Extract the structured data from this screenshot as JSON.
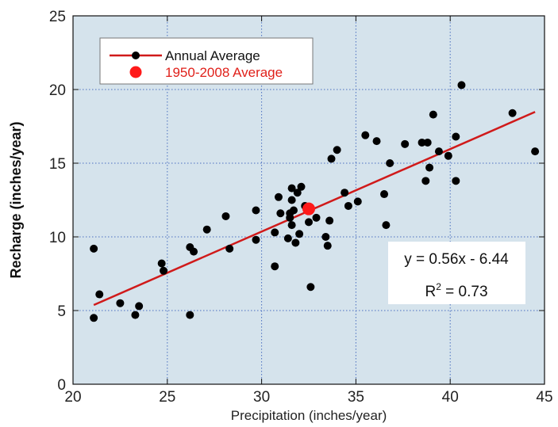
{
  "chart_data": {
    "type": "scatter",
    "xlabel": "Precipitation (inches/year)",
    "ylabel": "Recharge (inches/year)",
    "xlim": [
      20,
      45
    ],
    "ylim": [
      0,
      25
    ],
    "x_ticks": [
      "20",
      "25",
      "30",
      "35",
      "40",
      "45"
    ],
    "y_ticks": [
      "0",
      "5",
      "10",
      "15",
      "20",
      "25"
    ],
    "grid": true,
    "background_color": "#d5e3ec",
    "point_color": "#000000",
    "line_color": "#d01a1a",
    "highlight_color": "#ff1a1a",
    "legend_position": "top-left",
    "legend": [
      {
        "label": "Annual Average",
        "color": "#000000"
      },
      {
        "label": "1950-2008 Average",
        "color": "#ff1a1a"
      }
    ],
    "series": [
      {
        "name": "Annual Average",
        "points": [
          [
            21.1,
            9.2
          ],
          [
            21.1,
            4.5
          ],
          [
            21.4,
            6.1
          ],
          [
            22.5,
            5.5
          ],
          [
            23.3,
            4.7
          ],
          [
            23.5,
            5.3
          ],
          [
            24.7,
            8.2
          ],
          [
            24.8,
            7.7
          ],
          [
            26.2,
            4.7
          ],
          [
            26.2,
            9.3
          ],
          [
            26.4,
            9.0
          ],
          [
            27.1,
            10.5
          ],
          [
            28.1,
            11.4
          ],
          [
            28.3,
            9.2
          ],
          [
            29.7,
            11.8
          ],
          [
            29.7,
            9.8
          ],
          [
            30.7,
            10.3
          ],
          [
            30.7,
            8.0
          ],
          [
            30.9,
            12.7
          ],
          [
            31.0,
            11.6
          ],
          [
            31.4,
            9.9
          ],
          [
            31.5,
            11.3
          ],
          [
            31.5,
            11.6
          ],
          [
            31.6,
            12.5
          ],
          [
            31.6,
            13.3
          ],
          [
            31.6,
            10.8
          ],
          [
            31.7,
            11.8
          ],
          [
            31.8,
            9.6
          ],
          [
            31.9,
            13.0
          ],
          [
            32.0,
            10.2
          ],
          [
            32.1,
            13.4
          ],
          [
            32.3,
            12.1
          ],
          [
            32.5,
            11.0
          ],
          [
            32.6,
            6.6
          ],
          [
            32.9,
            11.3
          ],
          [
            33.4,
            10.0
          ],
          [
            33.5,
            9.4
          ],
          [
            33.6,
            11.1
          ],
          [
            33.7,
            15.3
          ],
          [
            34.0,
            15.9
          ],
          [
            34.4,
            13.0
          ],
          [
            34.6,
            12.1
          ],
          [
            35.1,
            12.4
          ],
          [
            35.5,
            16.9
          ],
          [
            36.1,
            16.5
          ],
          [
            36.5,
            12.9
          ],
          [
            36.6,
            10.8
          ],
          [
            36.8,
            15.0
          ],
          [
            37.6,
            16.3
          ],
          [
            38.5,
            16.4
          ],
          [
            38.7,
            13.8
          ],
          [
            38.8,
            16.4
          ],
          [
            38.9,
            14.7
          ],
          [
            39.1,
            18.3
          ],
          [
            39.4,
            15.8
          ],
          [
            39.9,
            15.5
          ],
          [
            40.3,
            13.8
          ],
          [
            40.3,
            16.8
          ],
          [
            40.6,
            20.3
          ],
          [
            43.3,
            18.4
          ],
          [
            44.5,
            15.8
          ]
        ]
      },
      {
        "name": "1950-2008 Average",
        "points": [
          [
            32.5,
            11.9
          ]
        ]
      }
    ],
    "trendline": {
      "slope": 0.56,
      "intercept": -6.44,
      "x_range": [
        21.1,
        44.5
      ]
    },
    "annotation": {
      "equation": "y = 0.56x - 6.44",
      "r2_prefix": "R",
      "r2_sup": "2",
      "r2_value": " = 0.73"
    }
  }
}
